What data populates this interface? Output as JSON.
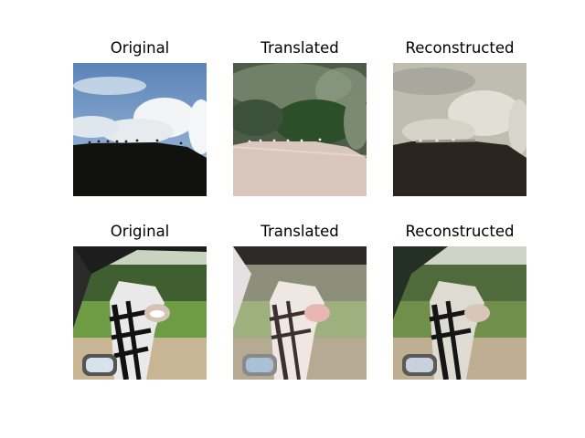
{
  "figure": {
    "rows": [
      {
        "panels": [
          {
            "title": "Original",
            "image": "sky-clouds-hill-birds"
          },
          {
            "title": "Translated",
            "image": "sky-clouds-hill-birds-translated"
          },
          {
            "title": "Reconstructed",
            "image": "sky-clouds-hill-birds-reconstructed"
          }
        ]
      },
      {
        "panels": [
          {
            "title": "Original",
            "image": "zebra-car-window"
          },
          {
            "title": "Translated",
            "image": "zebra-car-window-translated"
          },
          {
            "title": "Reconstructed",
            "image": "zebra-car-window-reconstructed"
          }
        ]
      }
    ]
  }
}
